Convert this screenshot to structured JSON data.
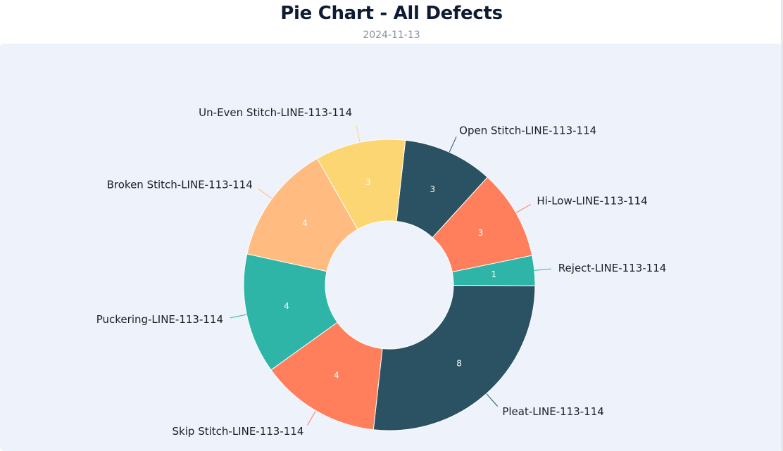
{
  "header": {
    "title": "Pie Chart - All Defects",
    "date": "2024-11-13"
  },
  "colors": {
    "background": "#edf2fb",
    "palette": [
      "#2b5263",
      "#ff7f5c",
      "#2fb5a7",
      "#ffbb80",
      "#fcd672"
    ]
  },
  "chart_data": {
    "type": "pie",
    "subtype": "donut",
    "title": "Pie Chart - All Defects",
    "subtitle": "2024-11-13",
    "categories": [
      "Open Stitch-LINE-113-114",
      "Hi-Low-LINE-113-114",
      "Reject-LINE-113-114",
      "Pleat-LINE-113-114",
      "Skip Stitch-LINE-113-114",
      "Puckering-LINE-113-114",
      "Broken Stitch-LINE-113-114",
      "Un-Even Stitch-LINE-113-114"
    ],
    "values": [
      3,
      3,
      1,
      8,
      4,
      4,
      4,
      3
    ],
    "colors": [
      "#2b5263",
      "#ff7f5c",
      "#2fb5a7",
      "#2b5263",
      "#ff7f5c",
      "#2fb5a7",
      "#ffbb80",
      "#fcd672"
    ],
    "data_labels": true,
    "legend": "none"
  }
}
